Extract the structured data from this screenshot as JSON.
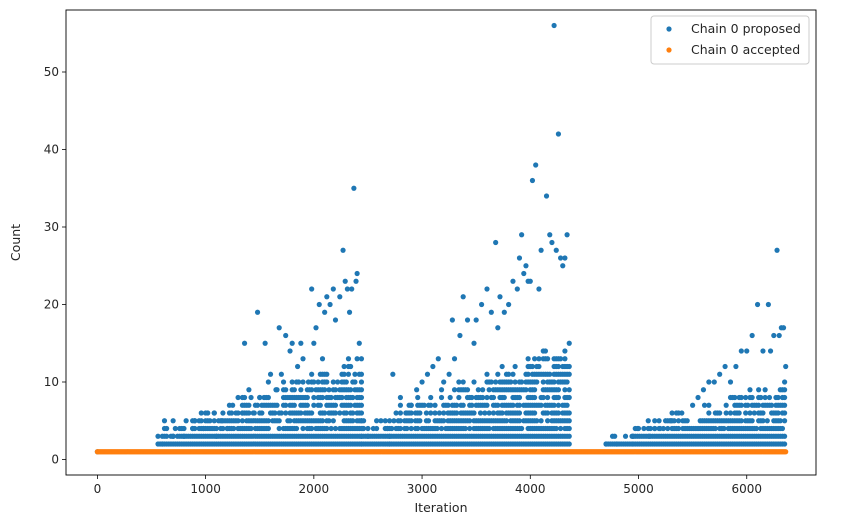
{
  "chart_data": {
    "type": "scatter",
    "title": "",
    "xlabel": "Iteration",
    "ylabel": "Count",
    "xlim": [
      -290,
      6640
    ],
    "ylim": [
      -2,
      58
    ],
    "xticks": [
      0,
      1000,
      2000,
      3000,
      4000,
      5000,
      6000
    ],
    "yticks": [
      0,
      10,
      20,
      30,
      40,
      50
    ],
    "grid": false,
    "legend_position": "top-right",
    "series": [
      {
        "name": "Chain 0 proposed",
        "color": "#1f77b4",
        "marker": "circle",
        "points": [
          [
            0,
            1
          ],
          [
            600,
            2
          ],
          [
            700,
            3
          ],
          [
            720,
            4
          ],
          [
            800,
            3
          ],
          [
            880,
            4
          ],
          [
            900,
            5
          ],
          [
            980,
            4
          ],
          [
            1000,
            6
          ],
          [
            1080,
            6
          ],
          [
            1100,
            3
          ],
          [
            1150,
            5
          ],
          [
            1200,
            4
          ],
          [
            1250,
            7
          ],
          [
            1300,
            8
          ],
          [
            1340,
            6
          ],
          [
            1360,
            15
          ],
          [
            1400,
            9
          ],
          [
            1450,
            6
          ],
          [
            1480,
            19
          ],
          [
            1500,
            8
          ],
          [
            1550,
            15
          ],
          [
            1580,
            10
          ],
          [
            1600,
            11
          ],
          [
            1650,
            9
          ],
          [
            1680,
            17
          ],
          [
            1700,
            11
          ],
          [
            1740,
            16
          ],
          [
            1780,
            14
          ],
          [
            1800,
            15
          ],
          [
            1850,
            12
          ],
          [
            1880,
            15
          ],
          [
            1900,
            13
          ],
          [
            1950,
            10
          ],
          [
            1980,
            22
          ],
          [
            2000,
            15
          ],
          [
            2020,
            17
          ],
          [
            2050,
            20
          ],
          [
            2080,
            13
          ],
          [
            2100,
            19
          ],
          [
            2120,
            21
          ],
          [
            2150,
            20
          ],
          [
            2180,
            22
          ],
          [
            2200,
            18
          ],
          [
            2240,
            21
          ],
          [
            2270,
            27
          ],
          [
            2290,
            23
          ],
          [
            2310,
            22
          ],
          [
            2330,
            19
          ],
          [
            2350,
            22
          ],
          [
            2370,
            35
          ],
          [
            2390,
            23
          ],
          [
            2400,
            24
          ],
          [
            2420,
            15
          ],
          [
            2450,
            4
          ],
          [
            2500,
            3
          ],
          [
            2550,
            4
          ],
          [
            2620,
            5
          ],
          [
            2680,
            4
          ],
          [
            2730,
            11
          ],
          [
            2760,
            6
          ],
          [
            2800,
            8
          ],
          [
            2850,
            6
          ],
          [
            2900,
            7
          ],
          [
            2950,
            9
          ],
          [
            3000,
            10
          ],
          [
            3050,
            11
          ],
          [
            3100,
            12
          ],
          [
            3150,
            13
          ],
          [
            3200,
            10
          ],
          [
            3250,
            11
          ],
          [
            3280,
            18
          ],
          [
            3300,
            13
          ],
          [
            3350,
            16
          ],
          [
            3380,
            21
          ],
          [
            3420,
            18
          ],
          [
            3480,
            15
          ],
          [
            3500,
            18
          ],
          [
            3550,
            20
          ],
          [
            3600,
            22
          ],
          [
            3640,
            19
          ],
          [
            3680,
            28
          ],
          [
            3700,
            17
          ],
          [
            3720,
            21
          ],
          [
            3760,
            19
          ],
          [
            3800,
            20
          ],
          [
            3840,
            23
          ],
          [
            3880,
            22
          ],
          [
            3900,
            26
          ],
          [
            3920,
            29
          ],
          [
            3940,
            24
          ],
          [
            3960,
            25
          ],
          [
            3980,
            23
          ],
          [
            4000,
            23
          ],
          [
            4020,
            36
          ],
          [
            4050,
            38
          ],
          [
            4080,
            22
          ],
          [
            4100,
            27
          ],
          [
            4150,
            34
          ],
          [
            4180,
            29
          ],
          [
            4200,
            28
          ],
          [
            4220,
            56
          ],
          [
            4240,
            27
          ],
          [
            4260,
            42
          ],
          [
            4280,
            26
          ],
          [
            4300,
            25
          ],
          [
            4320,
            26
          ],
          [
            4340,
            29
          ],
          [
            4360,
            15
          ],
          [
            4700,
            2
          ],
          [
            4800,
            2
          ],
          [
            4950,
            3
          ],
          [
            5000,
            4
          ],
          [
            5100,
            3
          ],
          [
            5150,
            4
          ],
          [
            5200,
            4
          ],
          [
            5250,
            5
          ],
          [
            5300,
            5
          ],
          [
            5350,
            6
          ],
          [
            5400,
            6
          ],
          [
            5450,
            5
          ],
          [
            5500,
            7
          ],
          [
            5550,
            8
          ],
          [
            5600,
            9
          ],
          [
            5650,
            10
          ],
          [
            5700,
            10
          ],
          [
            5750,
            11
          ],
          [
            5800,
            12
          ],
          [
            5850,
            10
          ],
          [
            5900,
            12
          ],
          [
            5950,
            14
          ],
          [
            6000,
            14
          ],
          [
            6050,
            16
          ],
          [
            6100,
            20
          ],
          [
            6150,
            14
          ],
          [
            6200,
            20
          ],
          [
            6220,
            14
          ],
          [
            6250,
            16
          ],
          [
            6280,
            27
          ],
          [
            6300,
            16
          ],
          [
            6320,
            17
          ],
          [
            6340,
            17
          ],
          [
            6360,
            12
          ]
        ],
        "bands": [
          {
            "x_from": 560,
            "x_to": 2440,
            "max_from": 3,
            "max_to": 12
          },
          {
            "x_from": 2440,
            "x_to": 2700,
            "max_from": 4,
            "max_to": 4
          },
          {
            "x_from": 2700,
            "x_to": 4360,
            "max_from": 5,
            "max_to": 14
          },
          {
            "x_from": 4700,
            "x_to": 4950,
            "max_from": 2,
            "max_to": 2
          },
          {
            "x_from": 4950,
            "x_to": 6360,
            "max_from": 3,
            "max_to": 9
          }
        ]
      },
      {
        "name": "Chain 0 accepted",
        "color": "#ff7f0e",
        "marker": "circle",
        "constant_y": 1,
        "x_range": [
          0,
          6360
        ]
      }
    ]
  }
}
